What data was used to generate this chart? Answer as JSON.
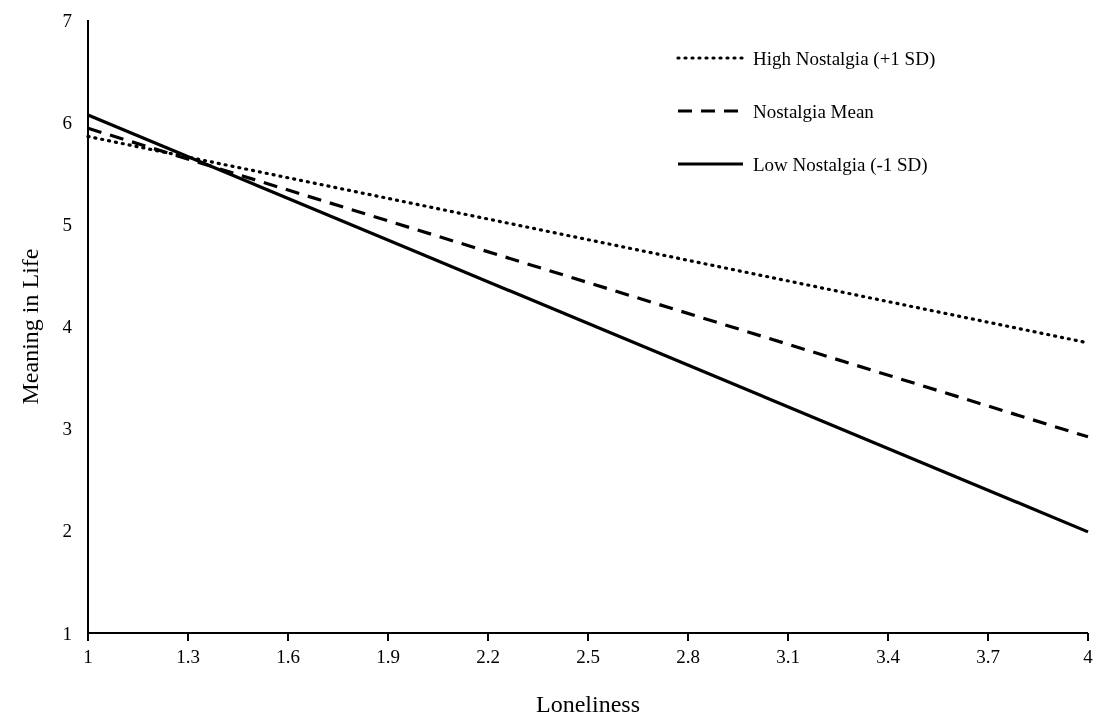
{
  "chart_data": {
    "type": "line",
    "xlabel": "Loneliness",
    "ylabel": "Meaning in Life",
    "x": [
      1,
      4
    ],
    "series": [
      {
        "name": "High Nostalgia (+1 SD)",
        "color": "#000000",
        "values": [
          5.86,
          3.84
        ],
        "line_style": "dotted"
      },
      {
        "name": "Nostalgia Mean",
        "color": "#000000",
        "values": [
          5.94,
          2.92
        ],
        "line_style": "dashed"
      },
      {
        "name": "Low Nostalgia (-1 SD)",
        "color": "#000000",
        "values": [
          6.07,
          1.99
        ],
        "line_style": "solid"
      }
    ],
    "xlim": [
      1,
      4
    ],
    "xticks": [
      1,
      1.3,
      1.6,
      1.9,
      2.2,
      2.5,
      2.8,
      3.1,
      3.4,
      3.7,
      4
    ],
    "ylim": [
      1,
      7
    ],
    "yticks": [
      1,
      2,
      3,
      4,
      5,
      6,
      7
    ],
    "grid": false,
    "legend": "top right",
    "marker": "none"
  }
}
